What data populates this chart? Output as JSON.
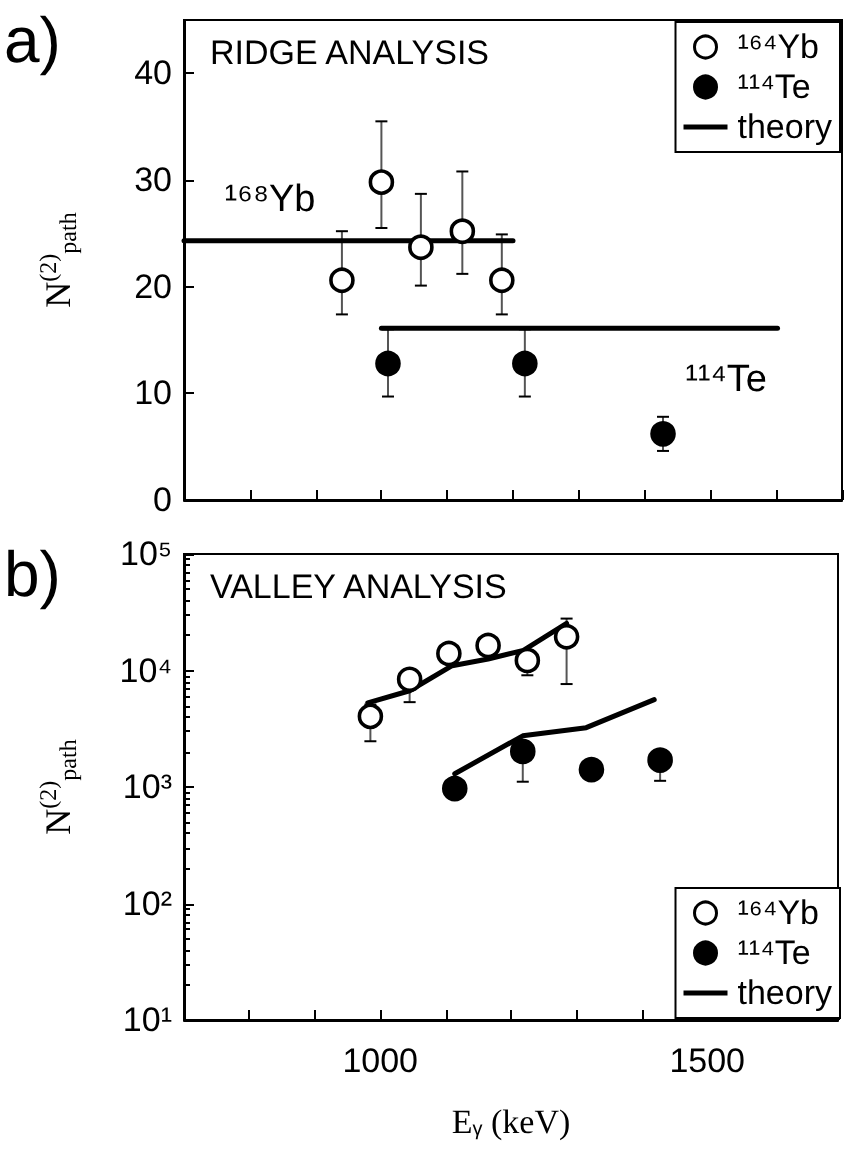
{
  "chart_data": [
    {
      "type": "scatter",
      "title": "RIDGE ANALYSIS",
      "ylabel": "N$^{(2)}$$_{path}$",
      "annotations": [
        "a)",
        "¹⁶⁸Yb",
        "¹¹⁴Te"
      ],
      "xlim": [
        700,
        1700
      ],
      "xticks": [
        700,
        800,
        900,
        1000,
        1100,
        1200,
        1300,
        1400,
        1500,
        1600,
        1700
      ],
      "ylim": [
        0,
        45
      ],
      "yticks": [
        0,
        10,
        20,
        30,
        40
      ],
      "tick_labels": "y",
      "grid": false,
      "legend": "top right",
      "series": [
        {
          "name": "¹⁶⁴Yb",
          "marker": "circle",
          "color": "#ffffff",
          "x": [
            940,
            1000,
            1060,
            1123,
            1183
          ],
          "values": [
            20.6,
            29.8,
            23.7,
            25.2,
            20.6
          ],
          "errors": [
            [
              17.4,
              25.2
            ],
            [
              25.5,
              35.5
            ],
            [
              20.1,
              28.7
            ],
            [
              21.2,
              30.8
            ],
            [
              17.4,
              24.9
            ]
          ]
        },
        {
          "name": "¹¹⁴Te",
          "marker": "circle",
          "color": "#000000",
          "x": [
            1010,
            1218,
            1428
          ],
          "values": [
            12.8,
            12.8,
            6.2
          ],
          "errors": [
            [
              9.7,
              16
            ],
            [
              9.7,
              16
            ],
            [
              4.6,
              7.8
            ]
          ]
        },
        {
          "name": "theory",
          "type": "line",
          "marker": "none",
          "color": "#000000",
          "x": [
            700,
            1200
          ],
          "values": [
            24.3,
            24.3
          ]
        },
        {
          "type": "line",
          "marker": "none",
          "color": "#000000",
          "x": [
            1000,
            1602
          ],
          "values": [
            16.1,
            16.1
          ]
        }
      ]
    },
    {
      "type": "scatter",
      "title": "VALLEY ANALYSIS",
      "xlabel": "E$_{γ}$ (keV)",
      "ylabel": "N$^{(2)}$$_{path}$",
      "annotations": [
        "b)"
      ],
      "xlim": [
        700,
        1700
      ],
      "xticks": [
        {
          "value": 700,
          "label": null
        },
        {
          "value": 800,
          "label": null
        },
        {
          "value": 900,
          "label": null
        },
        1000,
        {
          "value": 1100,
          "label": null
        },
        {
          "value": 1200,
          "label": null
        },
        {
          "value": 1300,
          "label": null
        },
        {
          "value": 1400,
          "label": null
        },
        1500,
        {
          "value": 1600,
          "label": null
        },
        {
          "value": 1700,
          "label": null
        }
      ],
      "ylim": [
        10,
        100000
      ],
      "yticks": [
        {
          "value": 10,
          "label": "10¹"
        },
        {
          "value": 100,
          "label": "10²"
        },
        {
          "value": 1000,
          "label": "10³"
        },
        {
          "value": 10000,
          "label": "10⁴"
        },
        {
          "value": 100000,
          "label": "10⁵"
        }
      ],
      "log": "y",
      "grid": false,
      "legend": "bottom right",
      "series": [
        {
          "name": "¹⁶⁴Yb",
          "marker": "circle",
          "color": "#ffffff",
          "x": [
            985,
            1045,
            1105,
            1165,
            1225,
            1285
          ],
          "values": [
            4040,
            8400,
            14000,
            16400,
            12200,
            19500
          ],
          "errors": [
            [
              2470,
              5100
            ],
            [
              5350,
              10000
            ],
            [
              12000,
              15500
            ],
            [
              14500,
              17000
            ],
            [
              9100,
              14900
            ],
            [
              7650,
              27900
            ]
          ]
        },
        {
          "name": "¹¹⁴Te",
          "marker": "circle",
          "color": "#000000",
          "x": [
            1114,
            1218,
            1323,
            1428
          ],
          "values": [
            970,
            2020,
            1410,
            1700
          ],
          "errors": [
            null,
            [
              1110,
              2460
            ],
            null,
            [
              1130,
              2060
            ]
          ]
        },
        {
          "name": "theory",
          "type": "line",
          "marker": "none",
          "color": "#000000",
          "x": [
            981,
            1045,
            1110,
            1165,
            1219,
            1285
          ],
          "values": [
            5270,
            6700,
            11000,
            12550,
            14900,
            25400
          ]
        },
        {
          "type": "line",
          "marker": "none",
          "color": "#000000",
          "x": [
            1114,
            1218,
            1315,
            1419
          ],
          "values": [
            1300,
            2750,
            3230,
            5620
          ]
        }
      ]
    }
  ]
}
